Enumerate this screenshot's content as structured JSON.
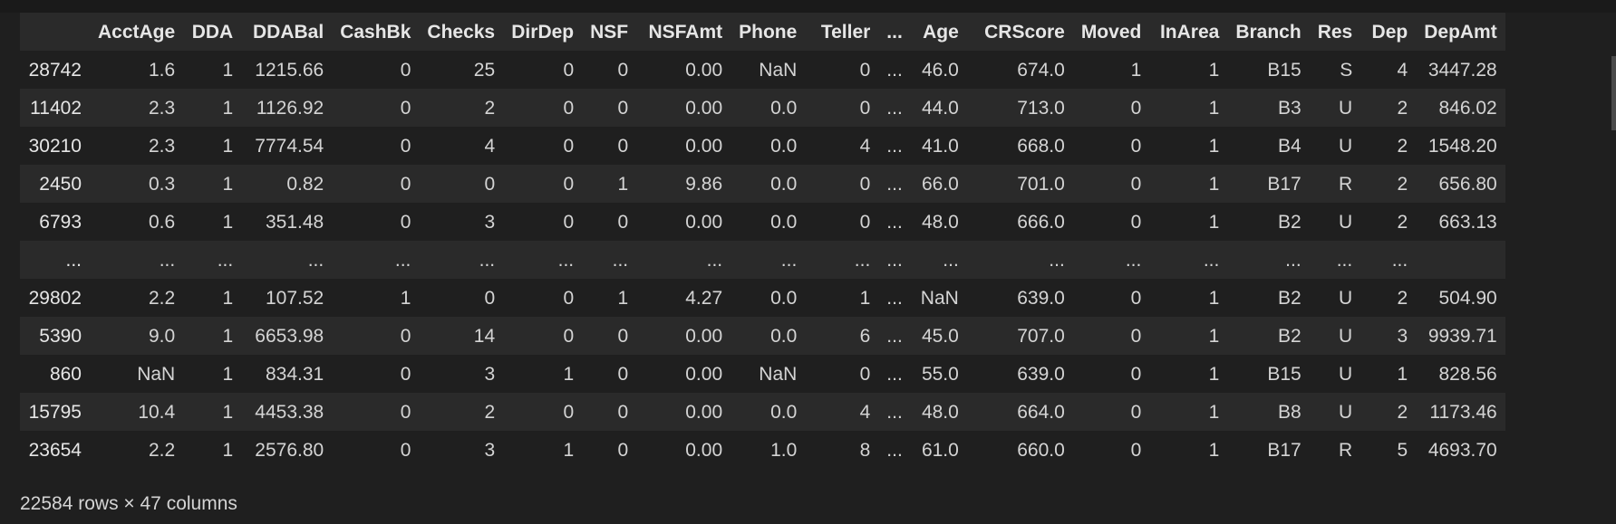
{
  "dataframe": {
    "index_header": "",
    "columns": [
      "AcctAge",
      "DDA",
      "DDABal",
      "CashBk",
      "Checks",
      "DirDep",
      "NSF",
      "NSFAmt",
      "Phone",
      "Teller",
      "...",
      "Age",
      "CRScore",
      "Moved",
      "InArea",
      "Branch",
      "Res",
      "Dep",
      "DepAmt"
    ],
    "rows": [
      {
        "index": "28742",
        "cells": [
          "1.6",
          "1",
          "1215.66",
          "0",
          "25",
          "0",
          "0",
          "0.00",
          "NaN",
          "0",
          "...",
          "46.0",
          "674.0",
          "1",
          "1",
          "B15",
          "S",
          "4",
          "3447.28"
        ]
      },
      {
        "index": "11402",
        "cells": [
          "2.3",
          "1",
          "1126.92",
          "0",
          "2",
          "0",
          "0",
          "0.00",
          "0.0",
          "0",
          "...",
          "44.0",
          "713.0",
          "0",
          "1",
          "B3",
          "U",
          "2",
          "846.02"
        ]
      },
      {
        "index": "30210",
        "cells": [
          "2.3",
          "1",
          "7774.54",
          "0",
          "4",
          "0",
          "0",
          "0.00",
          "0.0",
          "4",
          "...",
          "41.0",
          "668.0",
          "0",
          "1",
          "B4",
          "U",
          "2",
          "1548.20"
        ]
      },
      {
        "index": "2450",
        "cells": [
          "0.3",
          "1",
          "0.82",
          "0",
          "0",
          "0",
          "1",
          "9.86",
          "0.0",
          "0",
          "...",
          "66.0",
          "701.0",
          "0",
          "1",
          "B17",
          "R",
          "2",
          "656.80"
        ]
      },
      {
        "index": "6793",
        "cells": [
          "0.6",
          "1",
          "351.48",
          "0",
          "3",
          "0",
          "0",
          "0.00",
          "0.0",
          "0",
          "...",
          "48.0",
          "666.0",
          "0",
          "1",
          "B2",
          "U",
          "2",
          "663.13"
        ]
      },
      {
        "index": "...",
        "cells": [
          "...",
          "...",
          "...",
          "...",
          "...",
          "...",
          "...",
          "...",
          "...",
          "...",
          "...",
          "...",
          "...",
          "...",
          "...",
          "...",
          "...",
          "...",
          ""
        ]
      },
      {
        "index": "29802",
        "cells": [
          "2.2",
          "1",
          "107.52",
          "1",
          "0",
          "0",
          "1",
          "4.27",
          "0.0",
          "1",
          "...",
          "NaN",
          "639.0",
          "0",
          "1",
          "B2",
          "U",
          "2",
          "504.90"
        ]
      },
      {
        "index": "5390",
        "cells": [
          "9.0",
          "1",
          "6653.98",
          "0",
          "14",
          "0",
          "0",
          "0.00",
          "0.0",
          "6",
          "...",
          "45.0",
          "707.0",
          "0",
          "1",
          "B2",
          "U",
          "3",
          "9939.71"
        ]
      },
      {
        "index": "860",
        "cells": [
          "NaN",
          "1",
          "834.31",
          "0",
          "3",
          "1",
          "0",
          "0.00",
          "NaN",
          "0",
          "...",
          "55.0",
          "639.0",
          "0",
          "1",
          "B15",
          "U",
          "1",
          "828.56"
        ]
      },
      {
        "index": "15795",
        "cells": [
          "10.4",
          "1",
          "4453.38",
          "0",
          "2",
          "0",
          "0",
          "0.00",
          "0.0",
          "4",
          "...",
          "48.0",
          "664.0",
          "0",
          "1",
          "B8",
          "U",
          "2",
          "1173.46"
        ]
      },
      {
        "index": "23654",
        "cells": [
          "2.2",
          "1",
          "2576.80",
          "0",
          "3",
          "1",
          "0",
          "0.00",
          "1.0",
          "8",
          "...",
          "61.0",
          "660.0",
          "0",
          "1",
          "B17",
          "R",
          "5",
          "4693.70"
        ]
      }
    ],
    "shape_text": "22584 rows × 47 columns"
  }
}
